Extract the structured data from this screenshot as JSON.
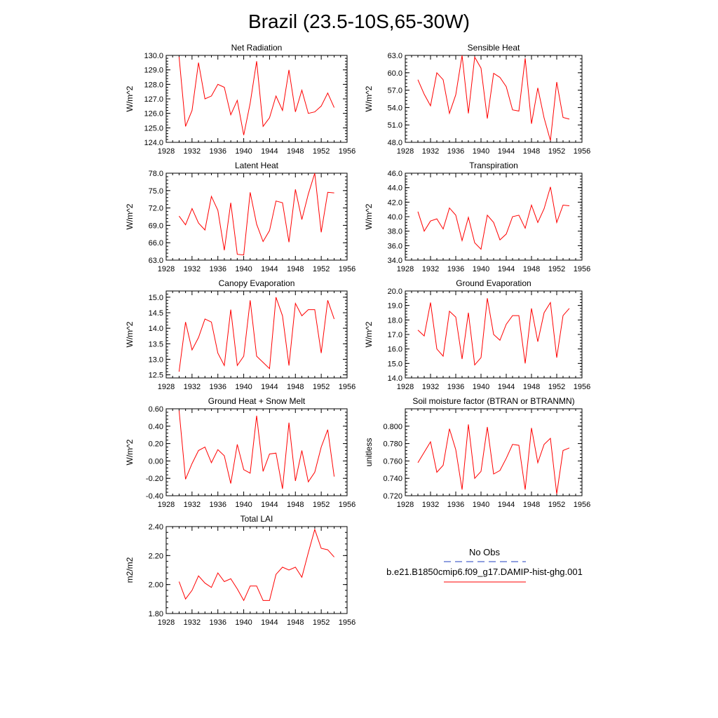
{
  "title": "Brazil (23.5-10S,65-30W)",
  "legend": {
    "entries": [
      {
        "label": "No Obs",
        "color": "#1f3fbf",
        "dash": true
      },
      {
        "label": "b.e21.B1850cmip6.f09_g17.DAMIP-hist-ghg.001",
        "color": "#ff0000",
        "dash": false
      }
    ]
  },
  "chart_data": [
    {
      "type": "line",
      "title": "Net Radiation",
      "ylabel": "W/m^2",
      "xlim": [
        1928,
        1956
      ],
      "ylim": [
        124.0,
        130.0
      ],
      "xticks": [
        "1928",
        "1932",
        "1936",
        "1940",
        "1944",
        "1948",
        "1952",
        "1956"
      ],
      "yticks": [
        "124.0",
        "125.0",
        "126.0",
        "127.0",
        "128.0",
        "129.0",
        "130.0"
      ],
      "x": [
        1930,
        1931,
        1932,
        1933,
        1934,
        1935,
        1936,
        1937,
        1938,
        1939,
        1940,
        1941,
        1942,
        1943,
        1944,
        1945,
        1946,
        1947,
        1948,
        1949,
        1950,
        1951,
        1952,
        1953,
        1954
      ],
      "values": [
        129.9,
        125.1,
        126.2,
        129.5,
        127.0,
        127.2,
        128.0,
        127.8,
        125.9,
        126.9,
        124.5,
        126.7,
        129.6,
        125.1,
        125.7,
        127.2,
        126.2,
        129.0,
        126.1,
        127.6,
        126.0,
        126.1,
        126.5,
        127.4,
        126.4
      ]
    },
    {
      "type": "line",
      "title": "Sensible Heat",
      "ylabel": "W/m^2",
      "xlim": [
        1928,
        1956
      ],
      "ylim": [
        48.0,
        63.0
      ],
      "xticks": [
        "1928",
        "1932",
        "1936",
        "1940",
        "1944",
        "1948",
        "1952",
        "1956"
      ],
      "yticks": [
        "48.0",
        "51.0",
        "54.0",
        "57.0",
        "60.0",
        "63.0"
      ],
      "x": [
        1930,
        1931,
        1932,
        1933,
        1934,
        1935,
        1936,
        1937,
        1938,
        1939,
        1940,
        1941,
        1942,
        1943,
        1944,
        1945,
        1946,
        1947,
        1948,
        1949,
        1950,
        1951,
        1952,
        1953,
        1954
      ],
      "values": [
        58.8,
        56.3,
        54.3,
        60.0,
        58.8,
        53.0,
        56.2,
        63.0,
        53.0,
        62.7,
        60.8,
        52.1,
        59.9,
        59.2,
        57.6,
        53.6,
        53.4,
        62.5,
        51.2,
        57.4,
        52.2,
        48.3,
        58.4,
        52.3,
        52.0
      ]
    },
    {
      "type": "line",
      "title": "Latent Heat",
      "ylabel": "W/m^2",
      "xlim": [
        1928,
        1956
      ],
      "ylim": [
        63.0,
        78.0
      ],
      "xticks": [
        "1928",
        "1932",
        "1936",
        "1940",
        "1944",
        "1948",
        "1952",
        "1956"
      ],
      "yticks": [
        "63.0",
        "66.0",
        "69.0",
        "72.0",
        "75.0",
        "78.0"
      ],
      "x": [
        1930,
        1931,
        1932,
        1933,
        1934,
        1935,
        1936,
        1937,
        1938,
        1939,
        1940,
        1941,
        1942,
        1943,
        1944,
        1945,
        1946,
        1947,
        1948,
        1949,
        1950,
        1951,
        1952,
        1953,
        1954
      ],
      "values": [
        70.6,
        69.1,
        71.9,
        69.4,
        68.2,
        74.0,
        71.6,
        64.7,
        72.9,
        64.0,
        63.9,
        74.7,
        69.2,
        66.2,
        68.1,
        73.2,
        72.9,
        66.1,
        75.2,
        70.0,
        74.4,
        78.0,
        67.8,
        74.7,
        74.6
      ]
    },
    {
      "type": "line",
      "title": "Transpiration",
      "ylabel": "W/m^2",
      "xlim": [
        1928,
        1956
      ],
      "ylim": [
        34.0,
        46.0
      ],
      "xticks": [
        "1928",
        "1932",
        "1936",
        "1940",
        "1944",
        "1948",
        "1952",
        "1956"
      ],
      "yticks": [
        "34.0",
        "36.0",
        "38.0",
        "40.0",
        "42.0",
        "44.0",
        "46.0"
      ],
      "x": [
        1930,
        1931,
        1932,
        1933,
        1934,
        1935,
        1936,
        1937,
        1938,
        1939,
        1940,
        1941,
        1942,
        1943,
        1944,
        1945,
        1946,
        1947,
        1948,
        1949,
        1950,
        1951,
        1952,
        1953,
        1954
      ],
      "values": [
        40.7,
        38.0,
        39.4,
        39.7,
        38.3,
        41.2,
        40.2,
        36.7,
        39.9,
        36.4,
        35.5,
        40.2,
        39.2,
        36.8,
        37.6,
        40.0,
        40.2,
        38.4,
        41.6,
        39.2,
        41.1,
        44.1,
        39.2,
        41.6,
        41.5
      ]
    },
    {
      "type": "line",
      "title": "Canopy Evaporation",
      "ylabel": "W/m^2",
      "xlim": [
        1928,
        1956
      ],
      "ylim": [
        12.4,
        15.2
      ],
      "xticks": [
        "1928",
        "1932",
        "1936",
        "1940",
        "1944",
        "1948",
        "1952",
        "1956"
      ],
      "yticks": [
        "12.5",
        "13.0",
        "13.5",
        "14.0",
        "14.5",
        "15.0"
      ],
      "x": [
        1930,
        1931,
        1932,
        1933,
        1934,
        1935,
        1936,
        1937,
        1938,
        1939,
        1940,
        1941,
        1942,
        1943,
        1944,
        1945,
        1946,
        1947,
        1948,
        1949,
        1950,
        1951,
        1952,
        1953,
        1954
      ],
      "values": [
        12.6,
        14.2,
        13.3,
        13.7,
        14.3,
        14.2,
        13.2,
        12.8,
        14.6,
        12.8,
        13.1,
        14.9,
        13.1,
        12.9,
        12.7,
        15.0,
        14.4,
        12.8,
        14.8,
        14.4,
        14.6,
        14.6,
        13.2,
        14.9,
        14.3
      ]
    },
    {
      "type": "line",
      "title": "Ground Evaporation",
      "ylabel": "W/m^2",
      "xlim": [
        1928,
        1956
      ],
      "ylim": [
        14.0,
        20.0
      ],
      "xticks": [
        "1928",
        "1932",
        "1936",
        "1940",
        "1944",
        "1948",
        "1952",
        "1956"
      ],
      "yticks": [
        "14.0",
        "15.0",
        "16.0",
        "17.0",
        "18.0",
        "19.0",
        "20.0"
      ],
      "x": [
        1930,
        1931,
        1932,
        1933,
        1934,
        1935,
        1936,
        1937,
        1938,
        1939,
        1940,
        1941,
        1942,
        1943,
        1944,
        1945,
        1946,
        1947,
        1948,
        1949,
        1950,
        1951,
        1952,
        1953,
        1954
      ],
      "values": [
        17.3,
        16.9,
        19.2,
        16.0,
        15.5,
        18.6,
        18.2,
        15.3,
        18.5,
        14.9,
        15.4,
        19.5,
        17.0,
        16.6,
        17.7,
        18.3,
        18.3,
        15.0,
        18.8,
        16.5,
        18.5,
        19.2,
        15.4,
        18.3,
        18.8
      ]
    },
    {
      "type": "line",
      "title": "Ground Heat + Snow Melt",
      "ylabel": "W/m^2",
      "xlim": [
        1928,
        1956
      ],
      "ylim": [
        -0.4,
        0.6
      ],
      "xticks": [
        "1928",
        "1932",
        "1936",
        "1940",
        "1944",
        "1948",
        "1952",
        "1956"
      ],
      "yticks": [
        "-0.40",
        "-0.20",
        "0.00",
        "0.20",
        "0.40",
        "0.60"
      ],
      "x": [
        1930,
        1931,
        1932,
        1933,
        1934,
        1935,
        1936,
        1937,
        1938,
        1939,
        1940,
        1941,
        1942,
        1943,
        1944,
        1945,
        1946,
        1947,
        1948,
        1949,
        1950,
        1951,
        1952,
        1953,
        1954
      ],
      "values": [
        0.58,
        -0.21,
        -0.03,
        0.12,
        0.16,
        -0.02,
        0.13,
        0.06,
        -0.26,
        0.19,
        -0.1,
        -0.14,
        0.52,
        -0.12,
        0.08,
        0.09,
        -0.32,
        0.44,
        -0.23,
        0.12,
        -0.24,
        -0.13,
        0.16,
        0.36,
        -0.18
      ]
    },
    {
      "type": "line",
      "title": "Soil moisture factor (BTRAN or BTRANMN)",
      "ylabel": "unitless",
      "xlim": [
        1928,
        1956
      ],
      "ylim": [
        0.72,
        0.82
      ],
      "xticks": [
        "1928",
        "1932",
        "1936",
        "1940",
        "1944",
        "1948",
        "1952",
        "1956"
      ],
      "yticks": [
        "0.720",
        "0.740",
        "0.760",
        "0.780",
        "0.800"
      ],
      "x": [
        1930,
        1931,
        1932,
        1933,
        1934,
        1935,
        1936,
        1937,
        1938,
        1939,
        1940,
        1941,
        1942,
        1943,
        1944,
        1945,
        1946,
        1947,
        1948,
        1949,
        1950,
        1951,
        1952,
        1953,
        1954
      ],
      "values": [
        0.758,
        0.77,
        0.782,
        0.747,
        0.755,
        0.797,
        0.773,
        0.727,
        0.802,
        0.74,
        0.748,
        0.799,
        0.745,
        0.749,
        0.763,
        0.779,
        0.778,
        0.727,
        0.798,
        0.758,
        0.779,
        0.786,
        0.722,
        0.772,
        0.775
      ]
    },
    {
      "type": "line",
      "title": "Total LAI",
      "ylabel": "m2/m2",
      "xlim": [
        1928,
        1956
      ],
      "ylim": [
        1.8,
        2.4
      ],
      "xticks": [
        "1928",
        "1932",
        "1936",
        "1940",
        "1944",
        "1948",
        "1952",
        "1956"
      ],
      "yticks": [
        "1.80",
        "2.00",
        "2.20",
        "2.40"
      ],
      "x": [
        1930,
        1931,
        1932,
        1933,
        1934,
        1935,
        1936,
        1937,
        1938,
        1939,
        1940,
        1941,
        1942,
        1943,
        1944,
        1945,
        1946,
        1947,
        1948,
        1949,
        1950,
        1951,
        1952,
        1953,
        1954
      ],
      "values": [
        2.02,
        1.9,
        1.96,
        2.06,
        2.01,
        1.98,
        2.08,
        2.02,
        2.04,
        1.97,
        1.89,
        1.99,
        1.99,
        1.89,
        1.89,
        2.07,
        2.12,
        2.1,
        2.12,
        2.05,
        2.22,
        2.38,
        2.25,
        2.24,
        2.19
      ]
    }
  ]
}
